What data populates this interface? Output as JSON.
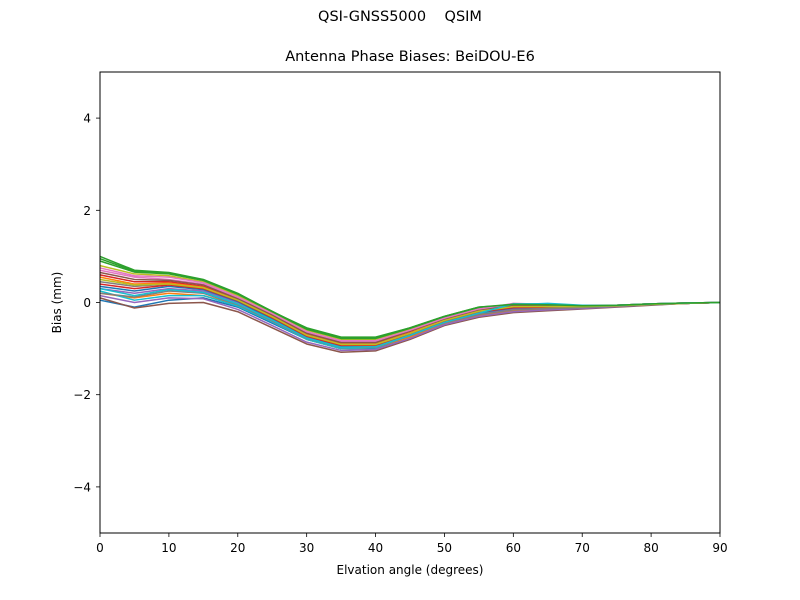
{
  "figure": {
    "suptitle": "QSI-GNSS5000    QSIM"
  },
  "chart_data": {
    "type": "line",
    "title": "Antenna Phase Biases: BeiDOU-E6",
    "xlabel": "Elvation angle (degrees)",
    "ylabel": "Bias (mm)",
    "xlim": [
      0,
      90
    ],
    "ylim": [
      -5,
      5
    ],
    "xticks": [
      0,
      10,
      20,
      30,
      40,
      50,
      60,
      70,
      80,
      90
    ],
    "yticks": [
      -4,
      -2,
      0,
      2,
      4
    ],
    "ytick_labels": [
      "−4",
      "−2",
      "0",
      "2",
      "4"
    ],
    "grid": false,
    "legend": "none",
    "x": [
      0,
      5,
      10,
      15,
      20,
      25,
      30,
      35,
      40,
      45,
      50,
      55,
      60,
      65,
      70,
      75,
      80,
      85,
      90
    ],
    "series": [
      {
        "color": "#1f77b4",
        "values": [
          0.05,
          -0.1,
          0.05,
          0.1,
          -0.1,
          -0.45,
          -0.8,
          -1.0,
          -1.0,
          -0.75,
          -0.45,
          -0.25,
          -0.15,
          -0.12,
          -0.1,
          -0.08,
          -0.05,
          -0.02,
          0.0
        ]
      },
      {
        "color": "#ff7f0e",
        "values": [
          0.2,
          0.1,
          0.2,
          0.15,
          -0.05,
          -0.4,
          -0.8,
          -1.0,
          -0.98,
          -0.75,
          -0.45,
          -0.28,
          -0.18,
          -0.14,
          -0.12,
          -0.09,
          -0.05,
          -0.02,
          0.0
        ]
      },
      {
        "color": "#2ca02c",
        "values": [
          1.0,
          0.7,
          0.65,
          0.5,
          0.2,
          -0.2,
          -0.55,
          -0.75,
          -0.75,
          -0.55,
          -0.3,
          -0.1,
          -0.05,
          -0.06,
          -0.08,
          -0.06,
          -0.03,
          -0.01,
          0.0
        ]
      },
      {
        "color": "#d62728",
        "values": [
          0.6,
          0.45,
          0.45,
          0.35,
          0.05,
          -0.3,
          -0.7,
          -0.9,
          -0.9,
          -0.65,
          -0.4,
          -0.22,
          -0.1,
          -0.1,
          -0.1,
          -0.08,
          -0.04,
          -0.02,
          0.0
        ]
      },
      {
        "color": "#9467bd",
        "values": [
          0.3,
          0.2,
          0.3,
          0.25,
          0.0,
          -0.35,
          -0.75,
          -0.95,
          -0.95,
          -0.7,
          -0.42,
          -0.24,
          -0.14,
          -0.12,
          -0.11,
          -0.08,
          -0.04,
          -0.02,
          0.0
        ]
      },
      {
        "color": "#8c564b",
        "values": [
          0.1,
          -0.12,
          -0.02,
          0.0,
          -0.2,
          -0.55,
          -0.9,
          -1.08,
          -1.05,
          -0.8,
          -0.5,
          -0.32,
          -0.22,
          -0.18,
          -0.14,
          -0.1,
          -0.06,
          -0.02,
          0.0
        ]
      },
      {
        "color": "#e377c2",
        "values": [
          0.7,
          0.55,
          0.5,
          0.4,
          0.1,
          -0.25,
          -0.65,
          -0.85,
          -0.85,
          -0.6,
          -0.35,
          -0.15,
          -0.02,
          -0.04,
          -0.07,
          -0.06,
          -0.03,
          -0.01,
          0.0
        ]
      },
      {
        "color": "#7f7f7f",
        "values": [
          0.45,
          0.35,
          0.4,
          0.3,
          0.05,
          -0.32,
          -0.72,
          -0.92,
          -0.92,
          -0.68,
          -0.4,
          -0.2,
          -0.1,
          -0.1,
          -0.1,
          -0.07,
          -0.04,
          -0.02,
          0.0
        ]
      },
      {
        "color": "#bcbd22",
        "values": [
          0.8,
          0.62,
          0.58,
          0.45,
          0.15,
          -0.22,
          -0.6,
          -0.8,
          -0.8,
          -0.58,
          -0.32,
          -0.12,
          -0.04,
          -0.06,
          -0.08,
          -0.06,
          -0.03,
          -0.01,
          0.0
        ]
      },
      {
        "color": "#17becf",
        "values": [
          0.25,
          0.05,
          0.15,
          0.15,
          -0.08,
          -0.42,
          -0.8,
          -1.0,
          -0.98,
          -0.72,
          -0.44,
          -0.26,
          -0.05,
          -0.02,
          -0.06,
          -0.06,
          -0.03,
          -0.01,
          0.0
        ]
      },
      {
        "color": "#1f77b4",
        "values": [
          0.35,
          0.25,
          0.35,
          0.28,
          0.02,
          -0.36,
          -0.76,
          -0.96,
          -0.95,
          -0.7,
          -0.42,
          -0.22,
          -0.12,
          -0.1,
          -0.1,
          -0.07,
          -0.04,
          -0.02,
          0.0
        ]
      },
      {
        "color": "#ff7f0e",
        "values": [
          0.55,
          0.4,
          0.42,
          0.33,
          0.05,
          -0.3,
          -0.7,
          -0.9,
          -0.9,
          -0.66,
          -0.38,
          -0.18,
          -0.1,
          -0.09,
          -0.09,
          -0.07,
          -0.04,
          -0.02,
          0.0
        ]
      },
      {
        "color": "#2ca02c",
        "values": [
          0.9,
          0.66,
          0.62,
          0.48,
          0.18,
          -0.2,
          -0.58,
          -0.78,
          -0.78,
          -0.56,
          -0.31,
          -0.11,
          -0.05,
          -0.06,
          -0.08,
          -0.06,
          -0.03,
          -0.01,
          0.0
        ]
      },
      {
        "color": "#d62728",
        "values": [
          0.4,
          0.3,
          0.38,
          0.3,
          0.04,
          -0.33,
          -0.73,
          -0.93,
          -0.93,
          -0.69,
          -0.41,
          -0.21,
          -0.11,
          -0.1,
          -0.1,
          -0.07,
          -0.04,
          -0.02,
          0.0
        ]
      },
      {
        "color": "#9467bd",
        "values": [
          0.15,
          0.0,
          0.1,
          0.08,
          -0.15,
          -0.5,
          -0.86,
          -1.04,
          -1.02,
          -0.78,
          -0.48,
          -0.3,
          -0.2,
          -0.16,
          -0.13,
          -0.09,
          -0.05,
          -0.02,
          0.0
        ]
      },
      {
        "color": "#8c564b",
        "values": [
          0.65,
          0.5,
          0.48,
          0.38,
          0.08,
          -0.27,
          -0.67,
          -0.87,
          -0.87,
          -0.62,
          -0.36,
          -0.16,
          -0.06,
          -0.07,
          -0.08,
          -0.06,
          -0.03,
          -0.01,
          0.0
        ]
      },
      {
        "color": "#e377c2",
        "values": [
          0.75,
          0.58,
          0.55,
          0.43,
          0.12,
          -0.24,
          -0.63,
          -0.83,
          -0.83,
          -0.6,
          -0.34,
          -0.14,
          -0.03,
          -0.05,
          -0.07,
          -0.06,
          -0.03,
          -0.01,
          0.0
        ]
      },
      {
        "color": "#7f7f7f",
        "values": [
          0.2,
          0.12,
          0.25,
          0.2,
          -0.05,
          -0.4,
          -0.78,
          -0.98,
          -0.97,
          -0.72,
          -0.44,
          -0.26,
          -0.16,
          -0.13,
          -0.11,
          -0.08,
          -0.05,
          -0.02,
          0.0
        ]
      },
      {
        "color": "#bcbd22",
        "values": [
          0.5,
          0.38,
          0.4,
          0.32,
          0.05,
          -0.31,
          -0.71,
          -0.91,
          -0.91,
          -0.67,
          -0.39,
          -0.19,
          -0.09,
          -0.09,
          -0.09,
          -0.07,
          -0.04,
          -0.02,
          0.0
        ]
      },
      {
        "color": "#17becf",
        "values": [
          0.3,
          0.15,
          0.28,
          0.22,
          -0.03,
          -0.38,
          -0.77,
          -0.97,
          -0.96,
          -0.71,
          -0.43,
          -0.23,
          -0.03,
          -0.03,
          -0.07,
          -0.06,
          -0.03,
          -0.01,
          0.0
        ]
      },
      {
        "color": "#2ca02c",
        "values": [
          0.95,
          0.68,
          0.64,
          0.49,
          0.19,
          -0.19,
          -0.57,
          -0.77,
          -0.77,
          -0.55,
          -0.3,
          -0.1,
          -0.04,
          -0.05,
          -0.07,
          -0.06,
          -0.03,
          -0.01,
          0.0
        ]
      }
    ]
  }
}
